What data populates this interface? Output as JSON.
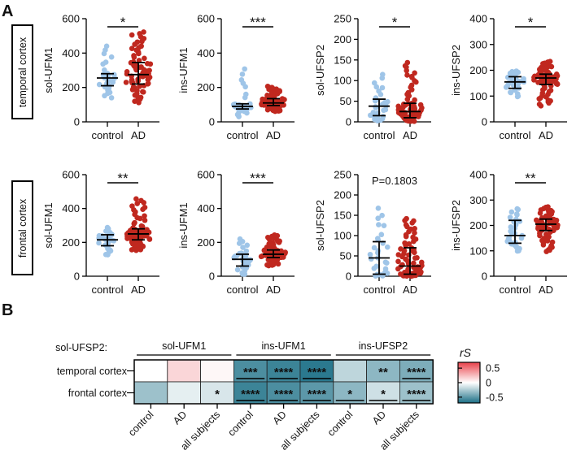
{
  "panel_labels": {
    "a": "A",
    "b": "B"
  },
  "region_labels": [
    "temporal cortex",
    "frontal cortex"
  ],
  "chart_data": [
    {
      "type": "scatter",
      "region": "temporal cortex",
      "ylabel": "sol-UFM1",
      "ylim": [
        0,
        600
      ],
      "yticks": [
        0,
        200,
        400,
        600
      ],
      "categories": [
        "control",
        "AD"
      ],
      "significance": "*",
      "groups": [
        {
          "name": "control",
          "median": 255,
          "iqr": [
            210,
            280
          ],
          "range": [
            140,
            455
          ],
          "n": 30
        },
        {
          "name": "AD",
          "median": 275,
          "iqr": [
            220,
            345
          ],
          "range": [
            110,
            525
          ],
          "n": 75
        }
      ]
    },
    {
      "type": "scatter",
      "region": "temporal cortex",
      "ylabel": "ins-UFM1",
      "ylim": [
        0,
        600
      ],
      "yticks": [
        0,
        200,
        400,
        600
      ],
      "categories": [
        "control",
        "AD"
      ],
      "significance": "***",
      "groups": [
        {
          "name": "control",
          "median": 90,
          "iqr": [
            75,
            105
          ],
          "range": [
            30,
            320
          ],
          "n": 30
        },
        {
          "name": "AD",
          "median": 110,
          "iqr": [
            95,
            135
          ],
          "range": [
            60,
            210
          ],
          "n": 75
        }
      ]
    },
    {
      "type": "scatter",
      "region": "temporal cortex",
      "ylabel": "sol-UFSP2",
      "ylim": [
        0,
        250
      ],
      "yticks": [
        0,
        50,
        100,
        150,
        200,
        250
      ],
      "categories": [
        "control",
        "AD"
      ],
      "significance": "*",
      "groups": [
        {
          "name": "control",
          "median": 38,
          "iqr": [
            15,
            55
          ],
          "range": [
            2,
            118
          ],
          "n": 30
        },
        {
          "name": "AD",
          "median": 25,
          "iqr": [
            10,
            45
          ],
          "range": [
            1,
            145
          ],
          "n": 75
        }
      ]
    },
    {
      "type": "scatter",
      "region": "temporal cortex",
      "ylabel": "ins-UFSP2",
      "ylim": [
        0,
        400
      ],
      "yticks": [
        0,
        100,
        200,
        300,
        400
      ],
      "categories": [
        "control",
        "AD"
      ],
      "significance": "*",
      "groups": [
        {
          "name": "control",
          "median": 155,
          "iqr": [
            130,
            175
          ],
          "range": [
            95,
            200
          ],
          "n": 30
        },
        {
          "name": "AD",
          "median": 170,
          "iqr": [
            145,
            185
          ],
          "range": [
            60,
            235
          ],
          "n": 75
        }
      ]
    },
    {
      "type": "scatter",
      "region": "frontal cortex",
      "ylabel": "sol-UFM1",
      "ylim": [
        0,
        600
      ],
      "yticks": [
        0,
        200,
        400,
        600
      ],
      "categories": [
        "control",
        "AD"
      ],
      "significance": "**",
      "groups": [
        {
          "name": "control",
          "median": 215,
          "iqr": [
            180,
            245
          ],
          "range": [
            120,
            290
          ],
          "n": 30
        },
        {
          "name": "AD",
          "median": 250,
          "iqr": [
            215,
            280
          ],
          "range": [
            150,
            460
          ],
          "n": 75
        }
      ]
    },
    {
      "type": "scatter",
      "region": "frontal cortex",
      "ylabel": "ins-UFM1",
      "ylim": [
        0,
        600
      ],
      "yticks": [
        0,
        200,
        400,
        600
      ],
      "categories": [
        "control",
        "AD"
      ],
      "significance": "***",
      "groups": [
        {
          "name": "control",
          "median": 100,
          "iqr": [
            60,
            130
          ],
          "range": [
            5,
            220
          ],
          "n": 30
        },
        {
          "name": "AD",
          "median": 130,
          "iqr": [
            110,
            155
          ],
          "range": [
            60,
            245
          ],
          "n": 75
        }
      ]
    },
    {
      "type": "scatter",
      "region": "frontal cortex",
      "ylabel": "sol-UFSP2",
      "ylim": [
        0,
        250
      ],
      "yticks": [
        0,
        50,
        100,
        150,
        200,
        250
      ],
      "categories": [
        "control",
        "AD"
      ],
      "significance": "P=0.1803",
      "groups": [
        {
          "name": "control",
          "median": 45,
          "iqr": [
            5,
            85
          ],
          "range": [
            0,
            170
          ],
          "n": 30
        },
        {
          "name": "AD",
          "median": 25,
          "iqr": [
            5,
            70
          ],
          "range": [
            0,
            145
          ],
          "n": 75
        }
      ]
    },
    {
      "type": "scatter",
      "region": "frontal cortex",
      "ylabel": "ins-UFSP2",
      "ylim": [
        0,
        400
      ],
      "yticks": [
        0,
        100,
        200,
        300,
        400
      ],
      "categories": [
        "control",
        "AD"
      ],
      "significance": "**",
      "groups": [
        {
          "name": "control",
          "median": 160,
          "iqr": [
            130,
            220
          ],
          "range": [
            95,
            270
          ],
          "n": 30
        },
        {
          "name": "AD",
          "median": 205,
          "iqr": [
            180,
            225
          ],
          "range": [
            95,
            275
          ],
          "n": 75
        }
      ]
    },
    {
      "type": "heatmap",
      "row_title": "sol-UFSP2:",
      "rows": [
        "temporal cortex",
        "frontal cortex"
      ],
      "groups": [
        "sol-UFM1",
        "ins-UFM1",
        "ins-UFSP2"
      ],
      "columns": [
        "control",
        "AD",
        "all subjects",
        "control",
        "AD",
        "all subjects",
        "control",
        "AD",
        "all subjects"
      ],
      "values": [
        [
          0.0,
          0.15,
          0.03,
          -0.55,
          -0.6,
          -0.65,
          -0.2,
          -0.35,
          -0.4
        ],
        [
          -0.3,
          -0.08,
          -0.12,
          -0.6,
          -0.55,
          -0.5,
          -0.35,
          -0.15,
          -0.3
        ]
      ],
      "stars": [
        [
          "",
          "",
          "",
          "***",
          "****",
          "****",
          "",
          "**",
          "****"
        ],
        [
          "",
          "",
          "*",
          "****",
          "****",
          "****",
          "*",
          "*",
          "****"
        ]
      ],
      "underlined": [
        [
          false,
          false,
          false,
          true,
          true,
          true,
          false,
          false,
          true
        ],
        [
          false,
          false,
          false,
          true,
          true,
          true,
          true,
          true,
          true
        ]
      ],
      "colorbar": {
        "label": "rS",
        "ticks": [
          0.5,
          0,
          -0.5
        ],
        "tick_labels": [
          "0.5",
          "0",
          "-0.5"
        ],
        "range": [
          -0.7,
          0.7
        ],
        "neg_color": "#1b6f86",
        "pos_color": "#e8414a"
      }
    }
  ],
  "colors": {
    "control": "#9fc5e8",
    "AD": "#c0281f"
  }
}
